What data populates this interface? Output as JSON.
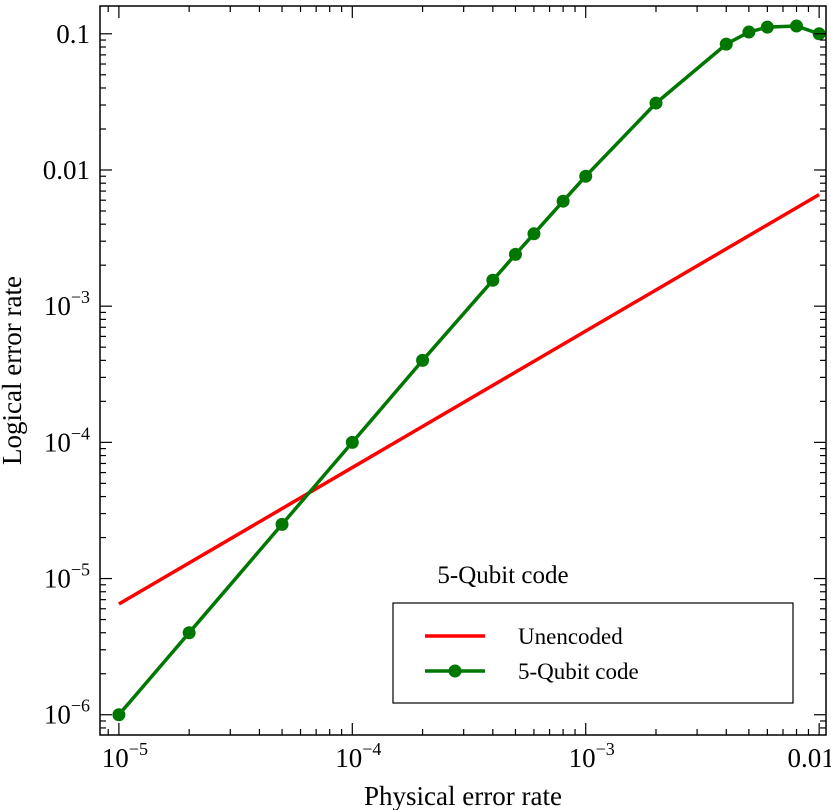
{
  "chart_data": {
    "type": "line",
    "title": "",
    "xlabel": "Physical error rate",
    "ylabel": "Logical error rate",
    "xscale": "log",
    "yscale": "log",
    "xlim": [
      8.3e-06,
      0.0107
    ],
    "ylim": [
      7.1e-07,
      0.16
    ],
    "grid": false,
    "legend_position": "lower-right",
    "annotation": "5-Qubit code",
    "xticks": [
      {
        "value": 1e-05,
        "base": "10",
        "exp": "−5"
      },
      {
        "value": 0.0001,
        "base": "10",
        "exp": "−4"
      },
      {
        "value": 0.001,
        "base": "10",
        "exp": "−3"
      },
      {
        "value": 0.01,
        "base": "0.01",
        "exp": ""
      }
    ],
    "yticks": [
      {
        "value": 1e-06,
        "base": "10",
        "exp": "−6"
      },
      {
        "value": 1e-05,
        "base": "10",
        "exp": "−5"
      },
      {
        "value": 0.0001,
        "base": "10",
        "exp": "−4"
      },
      {
        "value": 0.001,
        "base": "10",
        "exp": "−3"
      },
      {
        "value": 0.01,
        "base": "0.01",
        "exp": ""
      },
      {
        "value": 0.1,
        "base": "0.1",
        "exp": ""
      }
    ],
    "series": [
      {
        "name": "Unencoded",
        "color": "#ff0000",
        "marker": "none",
        "x": [
          1e-05,
          0.01
        ],
        "y": [
          6.5e-06,
          0.0066
        ]
      },
      {
        "name": "5-Qubit code",
        "color": "#007700",
        "marker": "circle",
        "x": [
          1e-05,
          2e-05,
          5e-05,
          0.0001,
          0.0002,
          0.0004,
          0.0005,
          0.0006,
          0.0008,
          0.001,
          0.002,
          0.004,
          0.005,
          0.006,
          0.008,
          0.01
        ],
        "y": [
          1e-06,
          4e-06,
          2.5e-05,
          0.0001,
          0.0004,
          0.00155,
          0.0024,
          0.0034,
          0.0059,
          0.009,
          0.031,
          0.084,
          0.103,
          0.112,
          0.114,
          0.1
        ]
      }
    ]
  }
}
